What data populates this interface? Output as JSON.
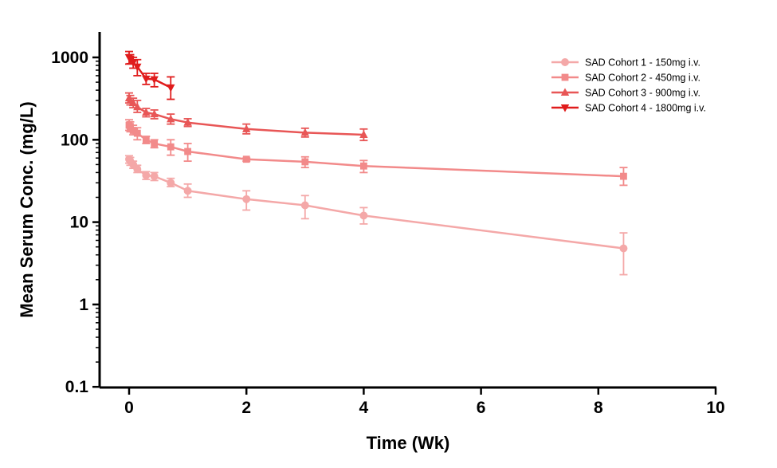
{
  "chart_data": {
    "type": "line",
    "title": "",
    "xlabel": "Time (Wk)",
    "ylabel": "Mean Serum Conc. (mg/L)",
    "xlim": [
      0,
      10
    ],
    "ylim": [
      0.1,
      2000
    ],
    "yscale": "log",
    "x_ticks": [
      0,
      2,
      4,
      6,
      8,
      10
    ],
    "y_ticks": [
      0.1,
      1,
      10,
      100,
      1000
    ],
    "x_tick_labels": [
      "0",
      "2",
      "4",
      "6",
      "8",
      "10"
    ],
    "y_tick_labels": [
      "0.1",
      "1",
      "10",
      "100",
      "1000"
    ],
    "grid": false,
    "legend_position": "top-right",
    "series": [
      {
        "name": "SAD Cohort 1 - 150mg i.v.",
        "marker": "circle",
        "color": "#f4a8a8",
        "x": [
          0,
          0.02,
          0.07,
          0.14,
          0.29,
          0.43,
          0.71,
          1,
          2,
          3,
          4,
          8.43
        ],
        "y": [
          58,
          55,
          50,
          44,
          37,
          36,
          30,
          24,
          19,
          16,
          12,
          4.8
        ],
        "err_low": [
          52,
          49,
          45,
          40,
          33,
          32,
          27,
          20,
          14,
          11,
          9.5,
          2.3
        ],
        "err_high": [
          64,
          61,
          55,
          49,
          41,
          40,
          34,
          29,
          24,
          21,
          15,
          7.4
        ]
      },
      {
        "name": "SAD Cohort 2 - 450mg i.v.",
        "marker": "square",
        "color": "#f28a8a",
        "x": [
          0,
          0.02,
          0.07,
          0.14,
          0.29,
          0.43,
          0.71,
          1,
          2,
          3,
          4,
          8.43
        ],
        "y": [
          150,
          145,
          130,
          120,
          100,
          90,
          82,
          72,
          58,
          54,
          48,
          36
        ],
        "err_low": [
          130,
          125,
          115,
          100,
          90,
          80,
          65,
          55,
          55,
          46,
          40,
          28
        ],
        "err_high": [
          175,
          165,
          150,
          140,
          110,
          100,
          100,
          90,
          60,
          62,
          56,
          46
        ]
      },
      {
        "name": "SAD Cohort 3 - 900mg i.v.",
        "marker": "triangle-up",
        "color": "#e85656",
        "x": [
          0,
          0.02,
          0.07,
          0.14,
          0.29,
          0.43,
          0.71,
          1,
          2,
          3,
          4
        ],
        "y": [
          320,
          300,
          280,
          250,
          215,
          205,
          178,
          162,
          135,
          122,
          115
        ],
        "err_low": [
          280,
          265,
          245,
          215,
          190,
          180,
          155,
          145,
          118,
          108,
          98
        ],
        "err_high": [
          370,
          345,
          320,
          300,
          240,
          230,
          205,
          180,
          155,
          138,
          135
        ]
      },
      {
        "name": "SAD Cohort 4 - 1800mg i.v.",
        "marker": "triangle-down",
        "color": "#e01c1c",
        "x": [
          0,
          0.02,
          0.07,
          0.14,
          0.29,
          0.43,
          0.71
        ],
        "y": [
          1000,
          960,
          870,
          770,
          550,
          540,
          430
        ],
        "err_low": [
          830,
          840,
          740,
          600,
          470,
          440,
          310
        ],
        "err_high": [
          1180,
          1080,
          1000,
          940,
          640,
          640,
          580
        ]
      }
    ]
  }
}
